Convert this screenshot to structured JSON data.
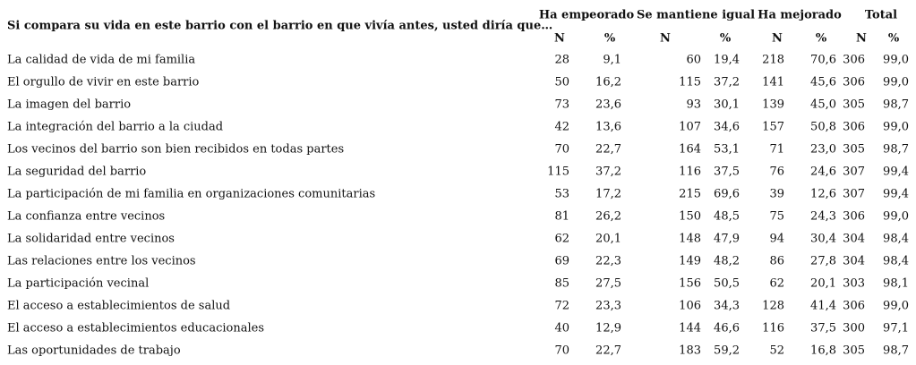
{
  "header": {
    "question": "Si compara su vida en este barrio con el barrio en que vivía antes, usted diría que…",
    "groups": [
      "Ha empeorado",
      "Se mantiene igual",
      "Ha mejorado",
      "Total"
    ],
    "subheaders": [
      "N",
      "%",
      "N",
      "%",
      "N",
      "%",
      "N",
      "%"
    ]
  },
  "table": {
    "rows": [
      [
        "La calidad de vida de mi familia",
        "28",
        "9,1",
        "60",
        "19,4",
        "218",
        "70,6",
        "306",
        "99,0"
      ],
      [
        "El orgullo de vivir en este barrio",
        "50",
        "16,2",
        "115",
        "37,2",
        "141",
        "45,6",
        "306",
        "99,0"
      ],
      [
        "La imagen del barrio",
        "73",
        "23,6",
        "93",
        "30,1",
        "139",
        "45,0",
        "305",
        "98,7"
      ],
      [
        "La integración del barrio a la ciudad",
        "42",
        "13,6",
        "107",
        "34,6",
        "157",
        "50,8",
        "306",
        "99,0"
      ],
      [
        "Los vecinos del barrio son bien recibidos en todas partes",
        "70",
        "22,7",
        "164",
        "53,1",
        "71",
        "23,0",
        "305",
        "98,7"
      ],
      [
        "La seguridad del barrio",
        "115",
        "37,2",
        "116",
        "37,5",
        "76",
        "24,6",
        "307",
        "99,4"
      ],
      [
        "La participación de mi familia en organizaciones comunitarias",
        "53",
        "17,2",
        "215",
        "69,6",
        "39",
        "12,6",
        "307",
        "99,4"
      ],
      [
        "La confianza entre vecinos",
        "81",
        "26,2",
        "150",
        "48,5",
        "75",
        "24,3",
        "306",
        "99,0"
      ],
      [
        "La solidaridad entre vecinos",
        "62",
        "20,1",
        "148",
        "47,9",
        "94",
        "30,4",
        "304",
        "98,4"
      ],
      [
        "Las relaciones entre los vecinos",
        "69",
        "22,3",
        "149",
        "48,2",
        "86",
        "27,8",
        "304",
        "98,4"
      ],
      [
        "La participación vecinal",
        "85",
        "27,5",
        "156",
        "50,5",
        "62",
        "20,1",
        "303",
        "98,1"
      ],
      [
        "El acceso a establecimientos de salud",
        "72",
        "23,3",
        "106",
        "34,3",
        "128",
        "41,4",
        "306",
        "99,0"
      ],
      [
        "El acceso a establecimientos educacionales",
        "40",
        "12,9",
        "144",
        "46,6",
        "116",
        "37,5",
        "300",
        "97,1"
      ],
      [
        "Las oportunidades de trabajo",
        "70",
        "22,7",
        "183",
        "59,2",
        "52",
        "16,8",
        "305",
        "98,7"
      ]
    ]
  }
}
